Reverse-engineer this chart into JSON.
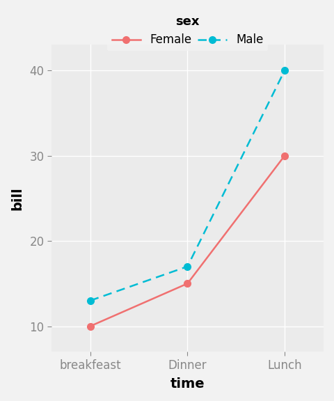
{
  "categories": [
    "breakfeast",
    "Dinner",
    "Lunch"
  ],
  "female_values": [
    10,
    15,
    30
  ],
  "male_values": [
    13,
    17,
    40
  ],
  "female_color": "#F07070",
  "male_color": "#00BCD4",
  "background_color": "#EBEBEB",
  "grid_color": "#FFFFFF",
  "title": "",
  "xlabel": "time",
  "ylabel": "bill",
  "ylim": [
    7,
    43
  ],
  "yticks": [
    10,
    20,
    30,
    40
  ],
  "legend_title": "sex",
  "legend_female": "Female",
  "legend_male": "Male",
  "title_fontsize": 13,
  "axis_label_fontsize": 14,
  "tick_fontsize": 12,
  "legend_fontsize": 12,
  "marker_size": 7,
  "line_width": 1.8
}
